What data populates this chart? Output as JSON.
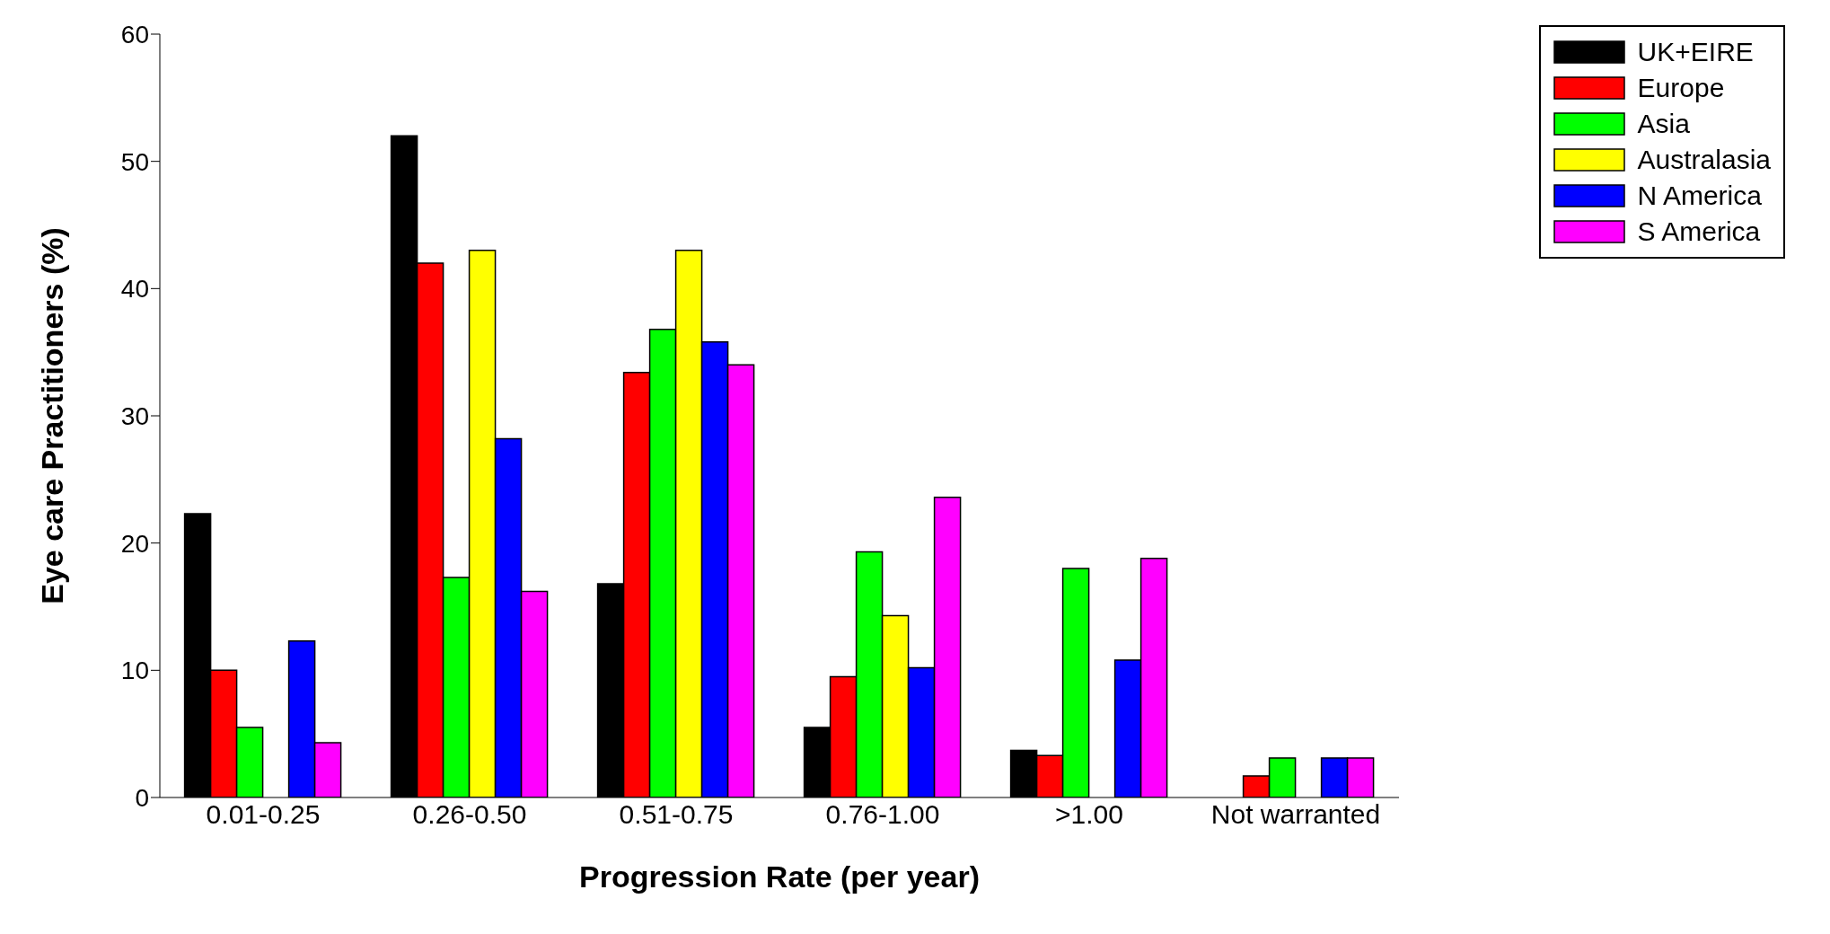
{
  "chart_data": {
    "type": "bar",
    "xlabel": "Progression Rate (per year)",
    "ylabel": "Eye care Practitioners (%)",
    "categories": [
      "0.01-0.25",
      "0.26-0.50",
      "0.51-0.75",
      "0.76-1.00",
      ">1.00",
      "Not warranted"
    ],
    "series": [
      {
        "name": "UK+EIRE",
        "color": "#000000",
        "values": [
          22.3,
          52,
          16.8,
          5.5,
          3.7,
          0
        ]
      },
      {
        "name": "Europe",
        "color": "#ff0000",
        "values": [
          10,
          42,
          33.4,
          9.5,
          3.3,
          1.7
        ]
      },
      {
        "name": "Asia",
        "color": "#00ff00",
        "values": [
          5.5,
          17.3,
          36.8,
          19.3,
          18,
          3.1
        ]
      },
      {
        "name": "Australasia",
        "color": "#ffff00",
        "values": [
          0,
          43,
          43,
          14.3,
          0,
          0
        ]
      },
      {
        "name": "N America",
        "color": "#0000ff",
        "values": [
          12.3,
          28.2,
          35.8,
          10.2,
          10.8,
          3.1
        ]
      },
      {
        "name": "S America",
        "color": "#ff00ff",
        "values": [
          4.3,
          16.2,
          34,
          23.6,
          18.8,
          3.1
        ]
      }
    ],
    "ylim": [
      0,
      60
    ],
    "yticks": [
      0,
      10,
      20,
      30,
      40,
      50,
      60
    ],
    "grid": false,
    "legend": "top right"
  }
}
